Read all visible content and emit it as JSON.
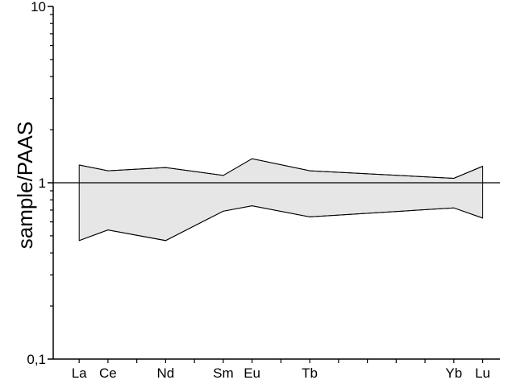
{
  "chart_data": {
    "type": "area",
    "title": "",
    "xlabel": "",
    "ylabel": "sample/PAAS",
    "y_scale": "log",
    "ylim": [
      0.1,
      10
    ],
    "y_ticks": [
      {
        "value": 0.1,
        "label": "0,1"
      },
      {
        "value": 1,
        "label": "1"
      },
      {
        "value": 10,
        "label": "10"
      }
    ],
    "categories": [
      "La",
      "Ce",
      "Nd",
      "Sm",
      "Eu",
      "Tb",
      "Yb",
      "Lu"
    ],
    "element_positions": [
      57,
      58,
      60,
      62,
      63,
      65,
      70,
      71
    ],
    "x_range": [
      56.1,
      71.6
    ],
    "series": [
      {
        "values": [
          1.26,
          1.17,
          1.22,
          1.1,
          1.37,
          1.17,
          1.06,
          1.24
        ]
      },
      {
        "values": [
          0.47,
          0.54,
          0.47,
          0.69,
          0.74,
          0.64,
          0.72,
          0.63
        ]
      }
    ],
    "reference_line": 1,
    "band_fill": "#e6e6e6",
    "line_color": "#000000",
    "grid": false
  }
}
